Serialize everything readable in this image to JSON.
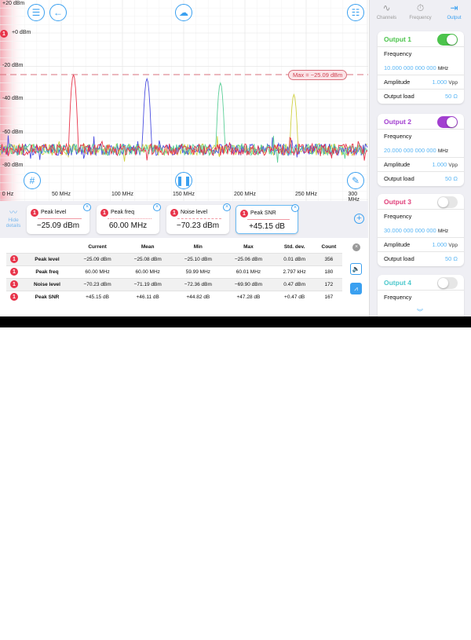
{
  "plot": {
    "y_ticks": [
      "+20 dBm",
      "+0 dBm",
      "-20 dBm",
      "-40 dBm",
      "-60 dBm",
      "-80 dBm"
    ],
    "x_ticks": [
      "0 Hz",
      "50 MHz",
      "100 MHz",
      "150 MHz",
      "200 MHz",
      "250 MHz",
      "300 MHz"
    ],
    "ref_badge": "1",
    "max_label": "Max = −25.09 dBm",
    "max_level_dbm": -25.09,
    "traces": [
      {
        "color": "#e8344a",
        "peak_mhz": 60,
        "peak_dbm": -25.1,
        "noise_dbm": -70
      },
      {
        "color": "#4a4ee0",
        "peak_mhz": 120,
        "peak_dbm": -27.5,
        "noise_dbm": -70
      },
      {
        "color": "#5ccf98",
        "peak_mhz": 180,
        "peak_dbm": -30,
        "noise_dbm": -70
      },
      {
        "color": "#cfd040",
        "peak_mhz": 240,
        "peak_dbm": -37,
        "noise_dbm": -70
      }
    ],
    "colors": {
      "accent": "#3aa0f0",
      "marker": "#e8344a"
    }
  },
  "details": {
    "hide_label_1": "Hide",
    "hide_label_2": "details",
    "cards": [
      {
        "badge": "1",
        "title": "Peak level",
        "value": "−25.09 dBm"
      },
      {
        "badge": "1",
        "title": "Peak freq",
        "value": "60.00 MHz"
      },
      {
        "badge": "1",
        "title": "Noise level",
        "value": "−70.23 dBm"
      },
      {
        "badge": "1",
        "title": "Peak SNR",
        "value": "+45.15 dB"
      }
    ],
    "table": {
      "headers": [
        "Current",
        "Mean",
        "Min",
        "Max",
        "Std. dev.",
        "Count"
      ],
      "rows": [
        {
          "badge": "1",
          "name": "Peak level",
          "c": [
            "−25.09 dBm",
            "−25.08 dBm",
            "−25.10 dBm",
            "−25.06 dBm",
            "0.01 dBm",
            "356"
          ]
        },
        {
          "badge": "1",
          "name": "Peak freq",
          "c": [
            "60.00 MHz",
            "60.00 MHz",
            "59.99 MHz",
            "60.01 MHz",
            "2.797 kHz",
            "180"
          ]
        },
        {
          "badge": "1",
          "name": "Noise level",
          "c": [
            "−70.23 dBm",
            "−71.19 dBm",
            "−72.36 dBm",
            "−69.90 dBm",
            "0.47 dBm",
            "172"
          ]
        },
        {
          "badge": "1",
          "name": "Peak SNR",
          "c": [
            "+45.15 dB",
            "+46.11 dB",
            "+44.82 dB",
            "+47.28 dB",
            "+0.47 dB",
            "167"
          ]
        }
      ]
    }
  },
  "sidebar": {
    "tabs": [
      {
        "label": "Channels"
      },
      {
        "label": "Frequency"
      },
      {
        "label": "Output",
        "active": true
      }
    ],
    "outputs": [
      {
        "title": "Output 1",
        "color": "#4cc44c",
        "enabled": true,
        "freq_label": "Frequency",
        "freq": "10.000 000 000 000",
        "freq_unit": "MHz",
        "amp_label": "Amplitude",
        "amp": "1.000",
        "amp_unit": "Vpp",
        "load_label": "Output load",
        "load": "50 Ω"
      },
      {
        "title": "Output 2",
        "color": "#a23fd0",
        "enabled": true,
        "freq_label": "Frequency",
        "freq": "20.000 000 000 000",
        "freq_unit": "MHz",
        "amp_label": "Amplitude",
        "amp": "1.000",
        "amp_unit": "Vpp",
        "load_label": "Output load",
        "load": "50 Ω"
      },
      {
        "title": "Output 3",
        "color": "#e0407a",
        "enabled": false,
        "freq_label": "Frequency",
        "freq": "30.000 000 000 000",
        "freq_unit": "MHz",
        "amp_label": "Amplitude",
        "amp": "1.000",
        "amp_unit": "Vpp",
        "load_label": "Output load",
        "load": "50 Ω"
      },
      {
        "title": "Output 4",
        "color": "#4cc8cc",
        "enabled": false,
        "freq_label": "Frequency"
      }
    ]
  }
}
